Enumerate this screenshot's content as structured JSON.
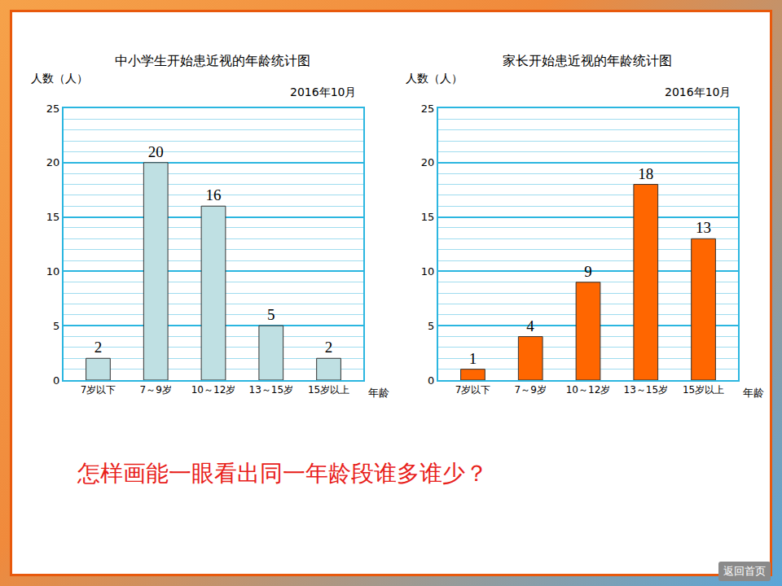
{
  "chart_data": [
    {
      "type": "bar",
      "title": "中小学生开始患近视的年龄统计图",
      "subtitle": "2016年10月",
      "y_label": "人数（人）",
      "x_label": "年龄",
      "categories": [
        "7岁以下",
        "7～9岁",
        "10～12岁",
        "13～15岁",
        "15岁以上"
      ],
      "values": [
        2,
        20,
        16,
        5,
        2
      ],
      "color": "#bfe0e3",
      "ylim": [
        0,
        25
      ],
      "yticks": [
        0,
        5,
        10,
        15,
        20,
        25
      ],
      "grid": true,
      "data_labels": true
    },
    {
      "type": "bar",
      "title": "家长开始患近视的年龄统计图",
      "subtitle": "2016年10月",
      "y_label": "人数（人）",
      "x_label": "年龄",
      "categories": [
        "7岁以下",
        "7～9岁",
        "10～12岁",
        "13～15岁",
        "15岁以上"
      ],
      "values": [
        1,
        4,
        9,
        18,
        13
      ],
      "color": "#ff6600",
      "ylim": [
        0,
        25
      ],
      "yticks": [
        0,
        5,
        10,
        15,
        20,
        25
      ],
      "grid": true,
      "data_labels": true
    }
  ],
  "question": "怎样画能一眼看出同一年龄段谁多谁少？",
  "button": "返回首页"
}
